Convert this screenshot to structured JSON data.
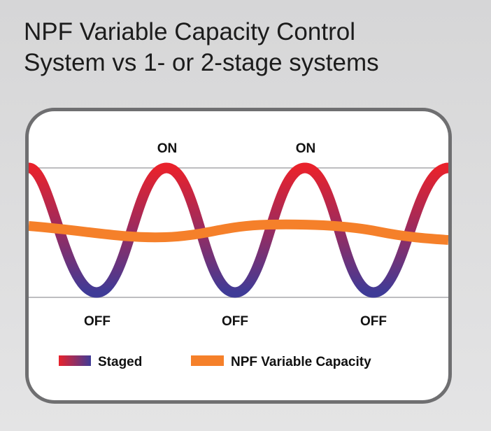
{
  "title": {
    "line1": "NPF Variable Capacity Control",
    "line2": "System vs 1- or 2-stage systems"
  },
  "labels": {
    "on": [
      "ON",
      "ON"
    ],
    "off": [
      "OFF",
      "OFF",
      "OFF"
    ]
  },
  "legend": {
    "staged_label": "Staged",
    "variable_label": "NPF Variable Capacity"
  },
  "colors": {
    "staged_top": "#e8222c",
    "staged_bottom": "#3f3b97",
    "variable": "#f5802a",
    "panel_border": "#6f6f71",
    "guide_lines": "#a9a9ab"
  }
}
